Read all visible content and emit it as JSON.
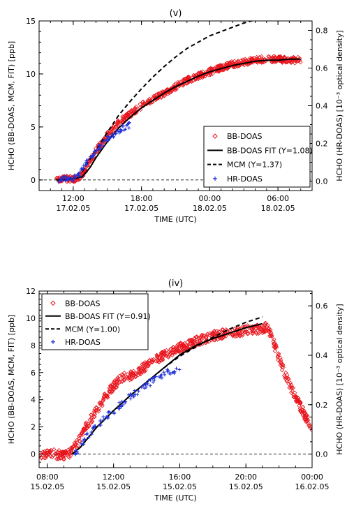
{
  "chart_data": [
    {
      "type": "scatter",
      "title": "(v)",
      "xlabel": "TIME (UTC)",
      "ylabel": "HCHO (BB-DOAS, MCM, FIT) [ppb]",
      "y2label": "HCHO (HR-DOAS) [10⁻³ optical density]",
      "xlim": [
        9.0,
        33.0
      ],
      "ylim": [
        -1.0,
        15.0
      ],
      "y2lim": [
        -0.05,
        0.85
      ],
      "xticks": [
        {
          "x": 12,
          "line1": "12:00",
          "line2": "17.02.05"
        },
        {
          "x": 18,
          "line1": "18:00",
          "line2": "17.02.05"
        },
        {
          "x": 24,
          "line1": "00:00",
          "line2": "18.02.05"
        },
        {
          "x": 30,
          "line1": "06:00",
          "line2": "18.02.05"
        }
      ],
      "yticks": [
        0,
        5,
        10,
        15
      ],
      "y2ticks": [
        "0.0",
        "0.2",
        "0.4",
        "0.6",
        "0.8"
      ],
      "y2tickvals": [
        0.0,
        0.2,
        0.4,
        0.6,
        0.8
      ],
      "legend": {
        "placement": "bottom-right",
        "entries": [
          {
            "label": "BB-DOAS",
            "marker": "diamond",
            "color": "#e8141c"
          },
          {
            "label": "BB-DOAS FIT (Y=1.08)",
            "line": "solid",
            "color": "#000000"
          },
          {
            "label": "MCM (Y=1.37)",
            "line": "dashed",
            "color": "#000000"
          },
          {
            "label": "HR-DOAS",
            "marker": "plus",
            "color": "#1f2fd6"
          }
        ]
      },
      "series": [
        {
          "name": "BB-DOAS",
          "kind": "scatter-band",
          "color": "#e8141c",
          "x": [
            10.5,
            11.0,
            11.5,
            12.0,
            12.5,
            13.0,
            14.0,
            15.0,
            16.0,
            17.0,
            18.0,
            19.0,
            20.0,
            21.0,
            22.0,
            23.0,
            24.0,
            25.0,
            26.0,
            27.0,
            28.0,
            29.0,
            30.0,
            31.0,
            32.0
          ],
          "y": [
            0.2,
            0.1,
            0.1,
            0.1,
            0.2,
            0.8,
            2.8,
            4.2,
            5.4,
            6.2,
            7.0,
            7.6,
            8.2,
            8.8,
            9.4,
            9.8,
            10.2,
            10.6,
            10.9,
            11.1,
            11.3,
            11.4,
            11.4,
            11.3,
            11.3
          ],
          "spread": 0.3
        },
        {
          "name": "BB-DOAS FIT (Y=1.08)",
          "kind": "line",
          "color": "#000000",
          "x": [
            10.5,
            11.0,
            12.0,
            12.8,
            13.5,
            14.0,
            15.0,
            16.0,
            17.0,
            18.0,
            19.0,
            20.0,
            21.0,
            22.0,
            23.0,
            24.0,
            25.0,
            26.0,
            27.0,
            28.0,
            29.0,
            30.0,
            31.0,
            32.0
          ],
          "y": [
            0.0,
            0.0,
            0.1,
            0.3,
            1.2,
            2.1,
            3.6,
            4.9,
            5.9,
            6.8,
            7.5,
            8.2,
            8.8,
            9.3,
            9.8,
            10.2,
            10.5,
            10.8,
            11.0,
            11.2,
            11.3,
            11.3,
            11.4,
            11.4
          ]
        },
        {
          "name": "MCM (Y=1.37)",
          "kind": "line",
          "dash": true,
          "color": "#000000",
          "x": [
            12.8,
            13.5,
            14.0,
            15.0,
            16.0,
            17.0,
            18.0,
            19.0,
            20.0,
            21.0,
            22.0,
            23.0,
            24.0,
            25.0,
            26.0,
            27.0,
            28.0,
            29.0,
            30.0,
            31.0,
            32.0
          ],
          "y": [
            0.8,
            2.0,
            2.8,
            4.5,
            6.1,
            7.4,
            8.6,
            9.7,
            10.7,
            11.6,
            12.4,
            13.0,
            13.6,
            14.0,
            14.4,
            14.8,
            15.1,
            15.3,
            15.5,
            15.6,
            15.7
          ]
        },
        {
          "name": "HR-DOAS",
          "kind": "scatter",
          "marker": "plus",
          "color": "#1f2fd6",
          "x": [
            10.6,
            11.0,
            11.4,
            11.8,
            12.2,
            12.6,
            13.0,
            13.4,
            13.8,
            14.2,
            14.6,
            15.0,
            15.4,
            15.8,
            16.2,
            16.6,
            17.0
          ],
          "y": [
            -0.1,
            0.1,
            0.2,
            0.0,
            0.3,
            0.6,
            1.4,
            2.0,
            2.5,
            3.0,
            3.4,
            3.9,
            4.1,
            4.5,
            4.8,
            5.0,
            5.2
          ]
        }
      ]
    },
    {
      "type": "scatter",
      "title": "(iv)",
      "xlabel": "TIME (UTC)",
      "ylabel": "HCHO (BB-DOAS, MCM, FIT) [ppb]",
      "y2label": "HCHO (HR-DOAS) [10⁻³ optical density]",
      "xlim": [
        7.5,
        24.0
      ],
      "ylim": [
        -1.0,
        12.0
      ],
      "y2lim": [
        -0.055,
        0.66
      ],
      "xticks": [
        {
          "x": 8,
          "line1": "08:00",
          "line2": "15.02.05"
        },
        {
          "x": 12,
          "line1": "12:00",
          "line2": "15.02.05"
        },
        {
          "x": 16,
          "line1": "16:00",
          "line2": "15.02.05"
        },
        {
          "x": 20,
          "line1": "20:00",
          "line2": "15.02.05"
        },
        {
          "x": 24,
          "line1": "00:00",
          "line2": "16.02.05"
        }
      ],
      "yticks": [
        0,
        2,
        4,
        6,
        8,
        10,
        12
      ],
      "y2ticks": [
        "0.0",
        "0.2",
        "0.4",
        "0.6"
      ],
      "y2tickvals": [
        0.0,
        0.2,
        0.4,
        0.6
      ],
      "legend": {
        "placement": "top-left",
        "entries": [
          {
            "label": "BB-DOAS",
            "marker": "diamond",
            "color": "#e8141c"
          },
          {
            "label": "BB-DOAS FIT (Y=0.91)",
            "line": "solid",
            "color": "#000000"
          },
          {
            "label": "MCM (Y=1.00)",
            "line": "dashed",
            "color": "#000000"
          },
          {
            "label": "HR-DOAS",
            "marker": "plus",
            "color": "#1f2fd6"
          }
        ]
      },
      "series": [
        {
          "name": "BB-DOAS",
          "kind": "scatter-band",
          "color": "#e8141c",
          "x": [
            7.6,
            8.0,
            8.5,
            9.0,
            9.5,
            10.0,
            10.5,
            11.0,
            11.5,
            12.0,
            12.5,
            13.0,
            13.5,
            14.0,
            14.5,
            15.0,
            15.5,
            16.0,
            16.5,
            17.0,
            17.5,
            18.0,
            18.5,
            19.0,
            19.5,
            20.0,
            20.5,
            21.0,
            21.3,
            21.6,
            22.0,
            22.5,
            23.0,
            23.5,
            24.0
          ],
          "y": [
            0.0,
            0.0,
            0.0,
            -0.1,
            0.2,
            1.2,
            2.3,
            3.2,
            4.2,
            5.0,
            5.6,
            5.8,
            6.1,
            6.5,
            6.9,
            7.2,
            7.5,
            7.8,
            8.0,
            8.3,
            8.5,
            8.7,
            8.8,
            8.9,
            9.0,
            9.1,
            9.2,
            9.2,
            9.4,
            8.5,
            7.0,
            5.5,
            4.2,
            3.0,
            2.0
          ],
          "spread": 0.35
        },
        {
          "name": "BB-DOAS FIT (Y=0.91)",
          "kind": "line",
          "color": "#000000",
          "x": [
            9.5,
            10.0,
            11.0,
            12.0,
            13.0,
            14.0,
            15.0,
            16.0,
            17.0,
            18.0,
            19.0,
            20.0,
            21.0
          ],
          "y": [
            0.0,
            0.5,
            2.0,
            3.2,
            4.3,
            5.3,
            6.3,
            7.3,
            8.0,
            8.5,
            8.9,
            9.3,
            9.6
          ]
        },
        {
          "name": "MCM (Y=1.00)",
          "kind": "line",
          "dash": true,
          "color": "#000000",
          "x": [
            9.5,
            10.0,
            11.0,
            12.0,
            13.0,
            14.0,
            15.0,
            16.0,
            17.0,
            18.0,
            19.0,
            20.0,
            21.0
          ],
          "y": [
            0.0,
            0.5,
            2.0,
            3.2,
            4.3,
            5.3,
            6.3,
            7.2,
            7.9,
            8.6,
            9.2,
            9.7,
            10.1
          ]
        },
        {
          "name": "HR-DOAS",
          "kind": "scatter",
          "marker": "plus",
          "color": "#1f2fd6",
          "x": [
            9.6,
            10.0,
            10.4,
            10.8,
            11.2,
            11.6,
            12.0,
            12.4,
            12.8,
            13.2,
            13.6,
            14.0,
            14.4,
            14.8,
            15.2,
            15.6,
            16.0
          ],
          "y": [
            0.0,
            0.6,
            1.3,
            1.8,
            2.3,
            2.8,
            3.2,
            3.6,
            4.0,
            4.4,
            4.7,
            5.1,
            5.4,
            5.7,
            6.0,
            6.1,
            6.2
          ]
        }
      ]
    }
  ]
}
